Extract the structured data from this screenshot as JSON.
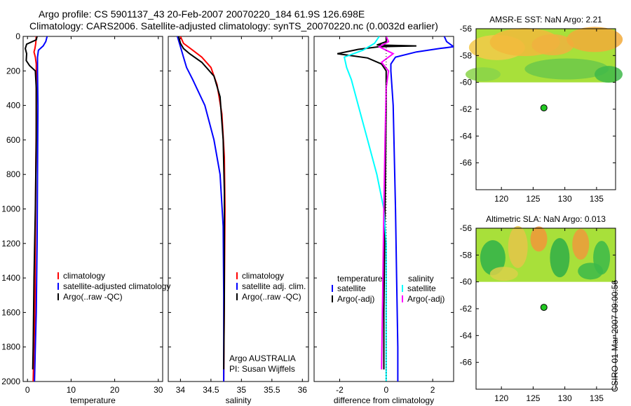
{
  "header": {
    "line1": "Argo profile: CS 5901137_43 20-Feb-2007 20070220_184 61.9S 126.698E",
    "line2": "Climatology: CARS2006. Satellite-adjusted climatology: synTS_20070220.nc (0.0032d earlier)"
  },
  "stamp": "CSIRO 01-Mar-2007 09:00:56",
  "colors": {
    "climatology": "#ff0000",
    "satellite": "#0000ff",
    "argo": "#000000",
    "cyan": "#00ffff",
    "magenta": "#ff00ff",
    "green": "#22c922",
    "map_land": "#ffffff"
  },
  "depth_axis": {
    "ylim": [
      0,
      2000
    ],
    "reversed": true,
    "ticks": [
      "0",
      "200",
      "400",
      "600",
      "800",
      "1000",
      "1200",
      "1400",
      "1600",
      "1800",
      "2000"
    ]
  },
  "chart_data": [
    {
      "type": "line",
      "id": "temperature-panel",
      "xlabel": "temperature",
      "xlim": [
        -1,
        31
      ],
      "x_ticks": [
        0,
        10,
        20,
        30
      ],
      "legend": [
        "climatology",
        "satellite-adjusted climatology",
        "Argo(..raw -QC)"
      ],
      "series": [
        {
          "name": "climatology",
          "color": "#ff0000",
          "points": [
            [
              2.0,
              0
            ],
            [
              1.9,
              40
            ],
            [
              1.7,
              70
            ],
            [
              1.5,
              90
            ],
            [
              1.8,
              120
            ],
            [
              2.0,
              160
            ],
            [
              2.0,
              250
            ],
            [
              2.0,
              500
            ],
            [
              1.9,
              800
            ],
            [
              1.8,
              1200
            ],
            [
              1.7,
              1600
            ],
            [
              1.5,
              1800
            ],
            [
              1.3,
              2000
            ]
          ]
        },
        {
          "name": "satellite-adjusted climatology",
          "color": "#0000ff",
          "points": [
            [
              4.5,
              0
            ],
            [
              4.2,
              30
            ],
            [
              3.6,
              55
            ],
            [
              2.5,
              80
            ],
            [
              2.3,
              120
            ],
            [
              2.3,
              200
            ],
            [
              2.4,
              400
            ],
            [
              2.3,
              800
            ],
            [
              2.2,
              1200
            ],
            [
              2.0,
              1600
            ],
            [
              1.8,
              1800
            ],
            [
              1.6,
              2000
            ]
          ]
        },
        {
          "name": "Argo(..raw -QC)",
          "color": "#000000",
          "points": [
            [
              2.2,
              0
            ],
            [
              2.0,
              20
            ],
            [
              -0.2,
              45
            ],
            [
              -0.5,
              70
            ],
            [
              -0.2,
              100
            ],
            [
              -0.3,
              140
            ],
            [
              0.5,
              170
            ],
            [
              1.8,
              200
            ],
            [
              2.0,
              300
            ],
            [
              2.0,
              600
            ],
            [
              1.8,
              1000
            ],
            [
              1.5,
              1400
            ],
            [
              1.3,
              1800
            ],
            [
              1.2,
              1930
            ]
          ]
        }
      ]
    },
    {
      "type": "line",
      "id": "salinity-panel",
      "xlabel": "salinity",
      "xlim": [
        33.8,
        36.1
      ],
      "x_ticks": [
        "34",
        "34.5",
        "35",
        "35.5",
        "36"
      ],
      "legend": [
        "climatology",
        "satellite adj. clim.",
        "Argo(..raw -QC)"
      ],
      "annotation": [
        "Argo AUSTRALIA",
        "PI: Susan Wijffels"
      ],
      "series": [
        {
          "name": "climatology",
          "color": "#ff0000",
          "points": [
            [
              34.0,
              0
            ],
            [
              34.05,
              40
            ],
            [
              34.2,
              80
            ],
            [
              34.35,
              120
            ],
            [
              34.5,
              180
            ],
            [
              34.6,
              280
            ],
            [
              34.68,
              450
            ],
            [
              34.72,
              700
            ],
            [
              34.73,
              1000
            ],
            [
              34.72,
              1500
            ],
            [
              34.71,
              2000
            ]
          ]
        },
        {
          "name": "satellite adj. clim.",
          "color": "#0000ff",
          "points": [
            [
              33.95,
              0
            ],
            [
              34.0,
              60
            ],
            [
              34.05,
              120
            ],
            [
              34.1,
              180
            ],
            [
              34.2,
              250
            ],
            [
              34.4,
              400
            ],
            [
              34.55,
              600
            ],
            [
              34.65,
              800
            ],
            [
              34.7,
              1100
            ],
            [
              34.71,
              1500
            ],
            [
              34.71,
              2000
            ]
          ]
        },
        {
          "name": "Argo(..raw -QC)",
          "color": "#000000",
          "points": [
            [
              33.97,
              0
            ],
            [
              34.0,
              40
            ],
            [
              34.05,
              70
            ],
            [
              34.15,
              100
            ],
            [
              34.35,
              150
            ],
            [
              34.55,
              230
            ],
            [
              34.65,
              350
            ],
            [
              34.7,
              600
            ],
            [
              34.72,
              900
            ],
            [
              34.72,
              1500
            ],
            [
              34.71,
              1930
            ]
          ]
        }
      ]
    },
    {
      "type": "line",
      "id": "difference-panel",
      "xlabel": "difference from climatology",
      "xlim": [
        -3.1,
        2.9
      ],
      "x_ticks": [
        -2,
        0,
        2
      ],
      "legend_groups": [
        {
          "title": "temperature",
          "items": [
            "satellite",
            "Argo(-adj)"
          ]
        },
        {
          "title": "salinity",
          "items": [
            "satellite",
            "Argo(-adj)"
          ]
        }
      ],
      "series": [
        {
          "name": "temperature satellite",
          "color": "#0000ff",
          "points": [
            [
              2.5,
              0
            ],
            [
              2.6,
              30
            ],
            [
              2.9,
              60
            ],
            [
              2.3,
              70
            ],
            [
              1.3,
              90
            ],
            [
              0.4,
              120
            ],
            [
              0.2,
              160
            ],
            [
              0.2,
              200
            ],
            [
              0.3,
              400
            ],
            [
              0.4,
              1000
            ],
            [
              0.45,
              1400
            ],
            [
              0.5,
              1800
            ],
            [
              0.5,
              2000
            ]
          ]
        },
        {
          "name": "temperature Argo(-adj)",
          "color": "#000000",
          "points": [
            [
              0.0,
              0
            ],
            [
              0.0,
              30
            ],
            [
              -0.4,
              50
            ],
            [
              1.3,
              55
            ],
            [
              -0.3,
              60
            ],
            [
              -1.2,
              75
            ],
            [
              -2.1,
              100
            ],
            [
              -0.8,
              125
            ],
            [
              -0.2,
              160
            ],
            [
              0.0,
              200
            ],
            [
              0.0,
              400
            ],
            [
              -0.05,
              1000
            ],
            [
              -0.1,
              1600
            ],
            [
              -0.1,
              1930
            ]
          ]
        },
        {
          "name": "salinity satellite",
          "color": "#00ffff",
          "points": [
            [
              -0.3,
              0
            ],
            [
              -0.5,
              40
            ],
            [
              -1.0,
              80
            ],
            [
              -1.8,
              120
            ],
            [
              -1.7,
              180
            ],
            [
              -1.5,
              250
            ],
            [
              -1.2,
              400
            ],
            [
              -0.8,
              600
            ],
            [
              -0.4,
              800
            ],
            [
              -0.1,
              1000
            ],
            [
              0.0,
              1200
            ],
            [
              0.0,
              2000
            ]
          ]
        },
        {
          "name": "salinity Argo(-adj)",
          "color": "#ff00ff",
          "points": [
            [
              0.0,
              0
            ],
            [
              0.1,
              30
            ],
            [
              -0.3,
              60
            ],
            [
              0.3,
              100
            ],
            [
              -0.2,
              150
            ],
            [
              0.1,
              200
            ],
            [
              0.0,
              300
            ],
            [
              -0.05,
              600
            ],
            [
              -0.1,
              1000
            ],
            [
              -0.15,
              1500
            ],
            [
              -0.2,
              1930
            ]
          ]
        }
      ]
    },
    {
      "type": "heatmap",
      "id": "amsr-sst-map",
      "title": "AMSR-E SST: NaN Argo: 2.21",
      "xlim": [
        116,
        138
      ],
      "ylim": [
        -68,
        -56
      ],
      "x_ticks": [
        120,
        125,
        130,
        135
      ],
      "y_ticks": [
        -56,
        -58,
        -60,
        -62,
        -64,
        -66
      ],
      "data_extent_lat": [
        -60,
        -56
      ],
      "argo_point": [
        126.698,
        -61.9
      ]
    },
    {
      "type": "heatmap",
      "id": "altimetric-sla-map",
      "title": "Altimetric SLA: NaN Argo: 0.013",
      "xlim": [
        116,
        138
      ],
      "ylim": [
        -68,
        -56
      ],
      "x_ticks": [
        120,
        125,
        130,
        135
      ],
      "y_ticks": [
        -56,
        -58,
        -60,
        -62,
        -64,
        -66
      ],
      "data_extent_lat": [
        -60,
        -56
      ],
      "argo_point": [
        126.698,
        -61.9
      ]
    }
  ]
}
